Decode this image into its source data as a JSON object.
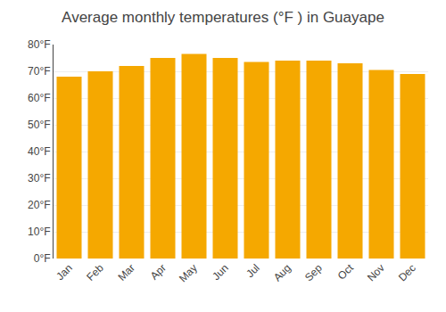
{
  "chart_data": {
    "type": "bar",
    "title": "Average monthly temperatures (°F ) in Guayape",
    "categories": [
      "Jan",
      "Feb",
      "Mar",
      "Apr",
      "May",
      "Jun",
      "Jul",
      "Aug",
      "Sep",
      "Oct",
      "Nov",
      "Dec"
    ],
    "values": [
      68,
      70,
      72,
      75,
      76.5,
      75,
      73.5,
      74,
      74,
      73,
      70.5,
      69
    ],
    "color": "#F5A800",
    "ylim": [
      0,
      80
    ],
    "yticks": [
      {
        "value": 0,
        "label": "0°F"
      },
      {
        "value": 10,
        "label": "10°F"
      },
      {
        "value": 20,
        "label": "20°F"
      },
      {
        "value": 30,
        "label": "30°F"
      },
      {
        "value": 40,
        "label": "40°F"
      },
      {
        "value": 50,
        "label": "50°F"
      },
      {
        "value": 60,
        "label": "60°F"
      },
      {
        "value": 70,
        "label": "70°F"
      },
      {
        "value": 80,
        "label": "80°F"
      }
    ],
    "grid": true
  }
}
